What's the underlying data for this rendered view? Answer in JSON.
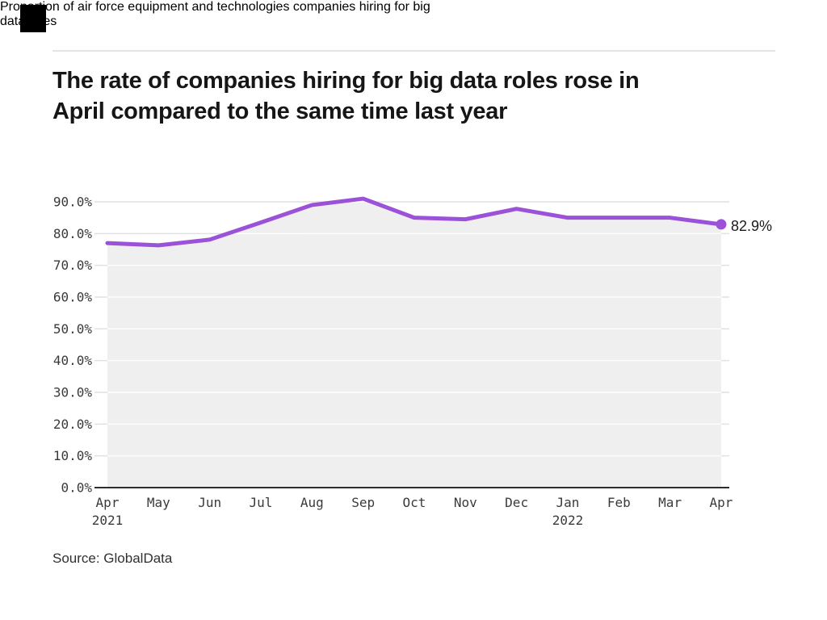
{
  "brand": {
    "logo_color": "#000000"
  },
  "header": {
    "title": "The rate of companies hiring for big data roles rose in April compared to the same time last year",
    "title_lines": [
      "The rate of companies hiring for big data roles rose in",
      "April compared to the same time last year"
    ],
    "subtitle": "Proportion of air force equipment and technologies companies hiring for big data roles",
    "subtitle_lines": [
      "Proportion of air force equipment and technologies companies hiring for big",
      "data roles"
    ]
  },
  "footer": {
    "source": "Source: GlobalData"
  },
  "chart_data": {
    "type": "line",
    "title": "The rate of companies hiring for big data roles rose in April compared to the same time last year",
    "subtitle": "Proportion of air force equipment and technologies companies hiring for big data roles",
    "x": [
      "Apr 2021",
      "May",
      "Jun",
      "Jul",
      "Aug",
      "Sep",
      "Oct",
      "Nov",
      "Dec",
      "Jan 2022",
      "Feb",
      "Mar",
      "Apr"
    ],
    "x_ticks": [
      {
        "label": "Apr",
        "year": "2021"
      },
      {
        "label": "May"
      },
      {
        "label": "Jun"
      },
      {
        "label": "Jul"
      },
      {
        "label": "Aug"
      },
      {
        "label": "Sep"
      },
      {
        "label": "Oct"
      },
      {
        "label": "Nov"
      },
      {
        "label": "Dec"
      },
      {
        "label": "Jan",
        "year": "2022"
      },
      {
        "label": "Feb"
      },
      {
        "label": "Mar"
      },
      {
        "label": "Apr"
      }
    ],
    "values": [
      77.0,
      76.3,
      78.1,
      83.5,
      89.0,
      91.0,
      85.0,
      84.5,
      87.8,
      85.0,
      85.0,
      85.0,
      82.9
    ],
    "end_label": "82.9%",
    "y_ticks": [
      {
        "v": 0,
        "label": "0.0%"
      },
      {
        "v": 10,
        "label": "10.0%"
      },
      {
        "v": 20,
        "label": "20.0%"
      },
      {
        "v": 30,
        "label": "30.0%"
      },
      {
        "v": 40,
        "label": "40.0%"
      },
      {
        "v": 50,
        "label": "50.0%"
      },
      {
        "v": 60,
        "label": "60.0%"
      },
      {
        "v": 70,
        "label": "70.0%"
      },
      {
        "v": 80,
        "label": "80.0%"
      },
      {
        "v": 90,
        "label": "90.0%"
      }
    ],
    "ylim": [
      0,
      95
    ],
    "xlabel": "",
    "ylabel": "",
    "grid": true,
    "legend": false,
    "source": "Source: GlobalData",
    "colors": {
      "line": "#9b51d8",
      "marker": "#9b51d8",
      "area": "#efefef",
      "grid": "#e1e1e1",
      "grid_on_area": "#ffffff",
      "axis": "#2e2e2e",
      "tick_text": "#3a3a3a",
      "end_label_text": "#1a1a1a",
      "title_text": "#161616"
    }
  }
}
